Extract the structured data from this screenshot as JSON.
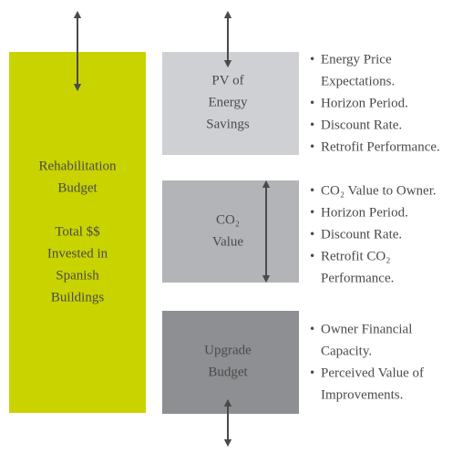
{
  "left_box": {
    "label": [
      "Rehabilitation",
      "Budget"
    ],
    "sublabel": [
      "Total $$",
      "Invested in",
      "Spanish",
      "Buildings"
    ]
  },
  "boxes": [
    {
      "label": [
        "PV of",
        "Energy",
        "Savings"
      ],
      "bullets": [
        {
          "lines": [
            "Energy Price",
            "Expectations."
          ]
        },
        {
          "lines": [
            "Horizon Period."
          ]
        },
        {
          "lines": [
            "Discount Rate."
          ]
        },
        {
          "lines": [
            "Retrofit Performance."
          ]
        }
      ]
    },
    {
      "label": [
        "CO₂",
        "Value"
      ],
      "bullets": [
        {
          "lines": [
            "CO₂ Value to Owner."
          ]
        },
        {
          "lines": [
            "Horizon Period."
          ]
        },
        {
          "lines": [
            "Discount Rate."
          ]
        },
        {
          "lines": [
            "Retrofit CO₂",
            "Performance."
          ]
        }
      ]
    },
    {
      "label": [
        "Upgrade",
        "Budget"
      ],
      "bullets": [
        {
          "lines": [
            "Owner Financial",
            "Capacity."
          ]
        },
        {
          "lines": [
            "Perceived Value of",
            "Improvements."
          ]
        }
      ]
    }
  ]
}
